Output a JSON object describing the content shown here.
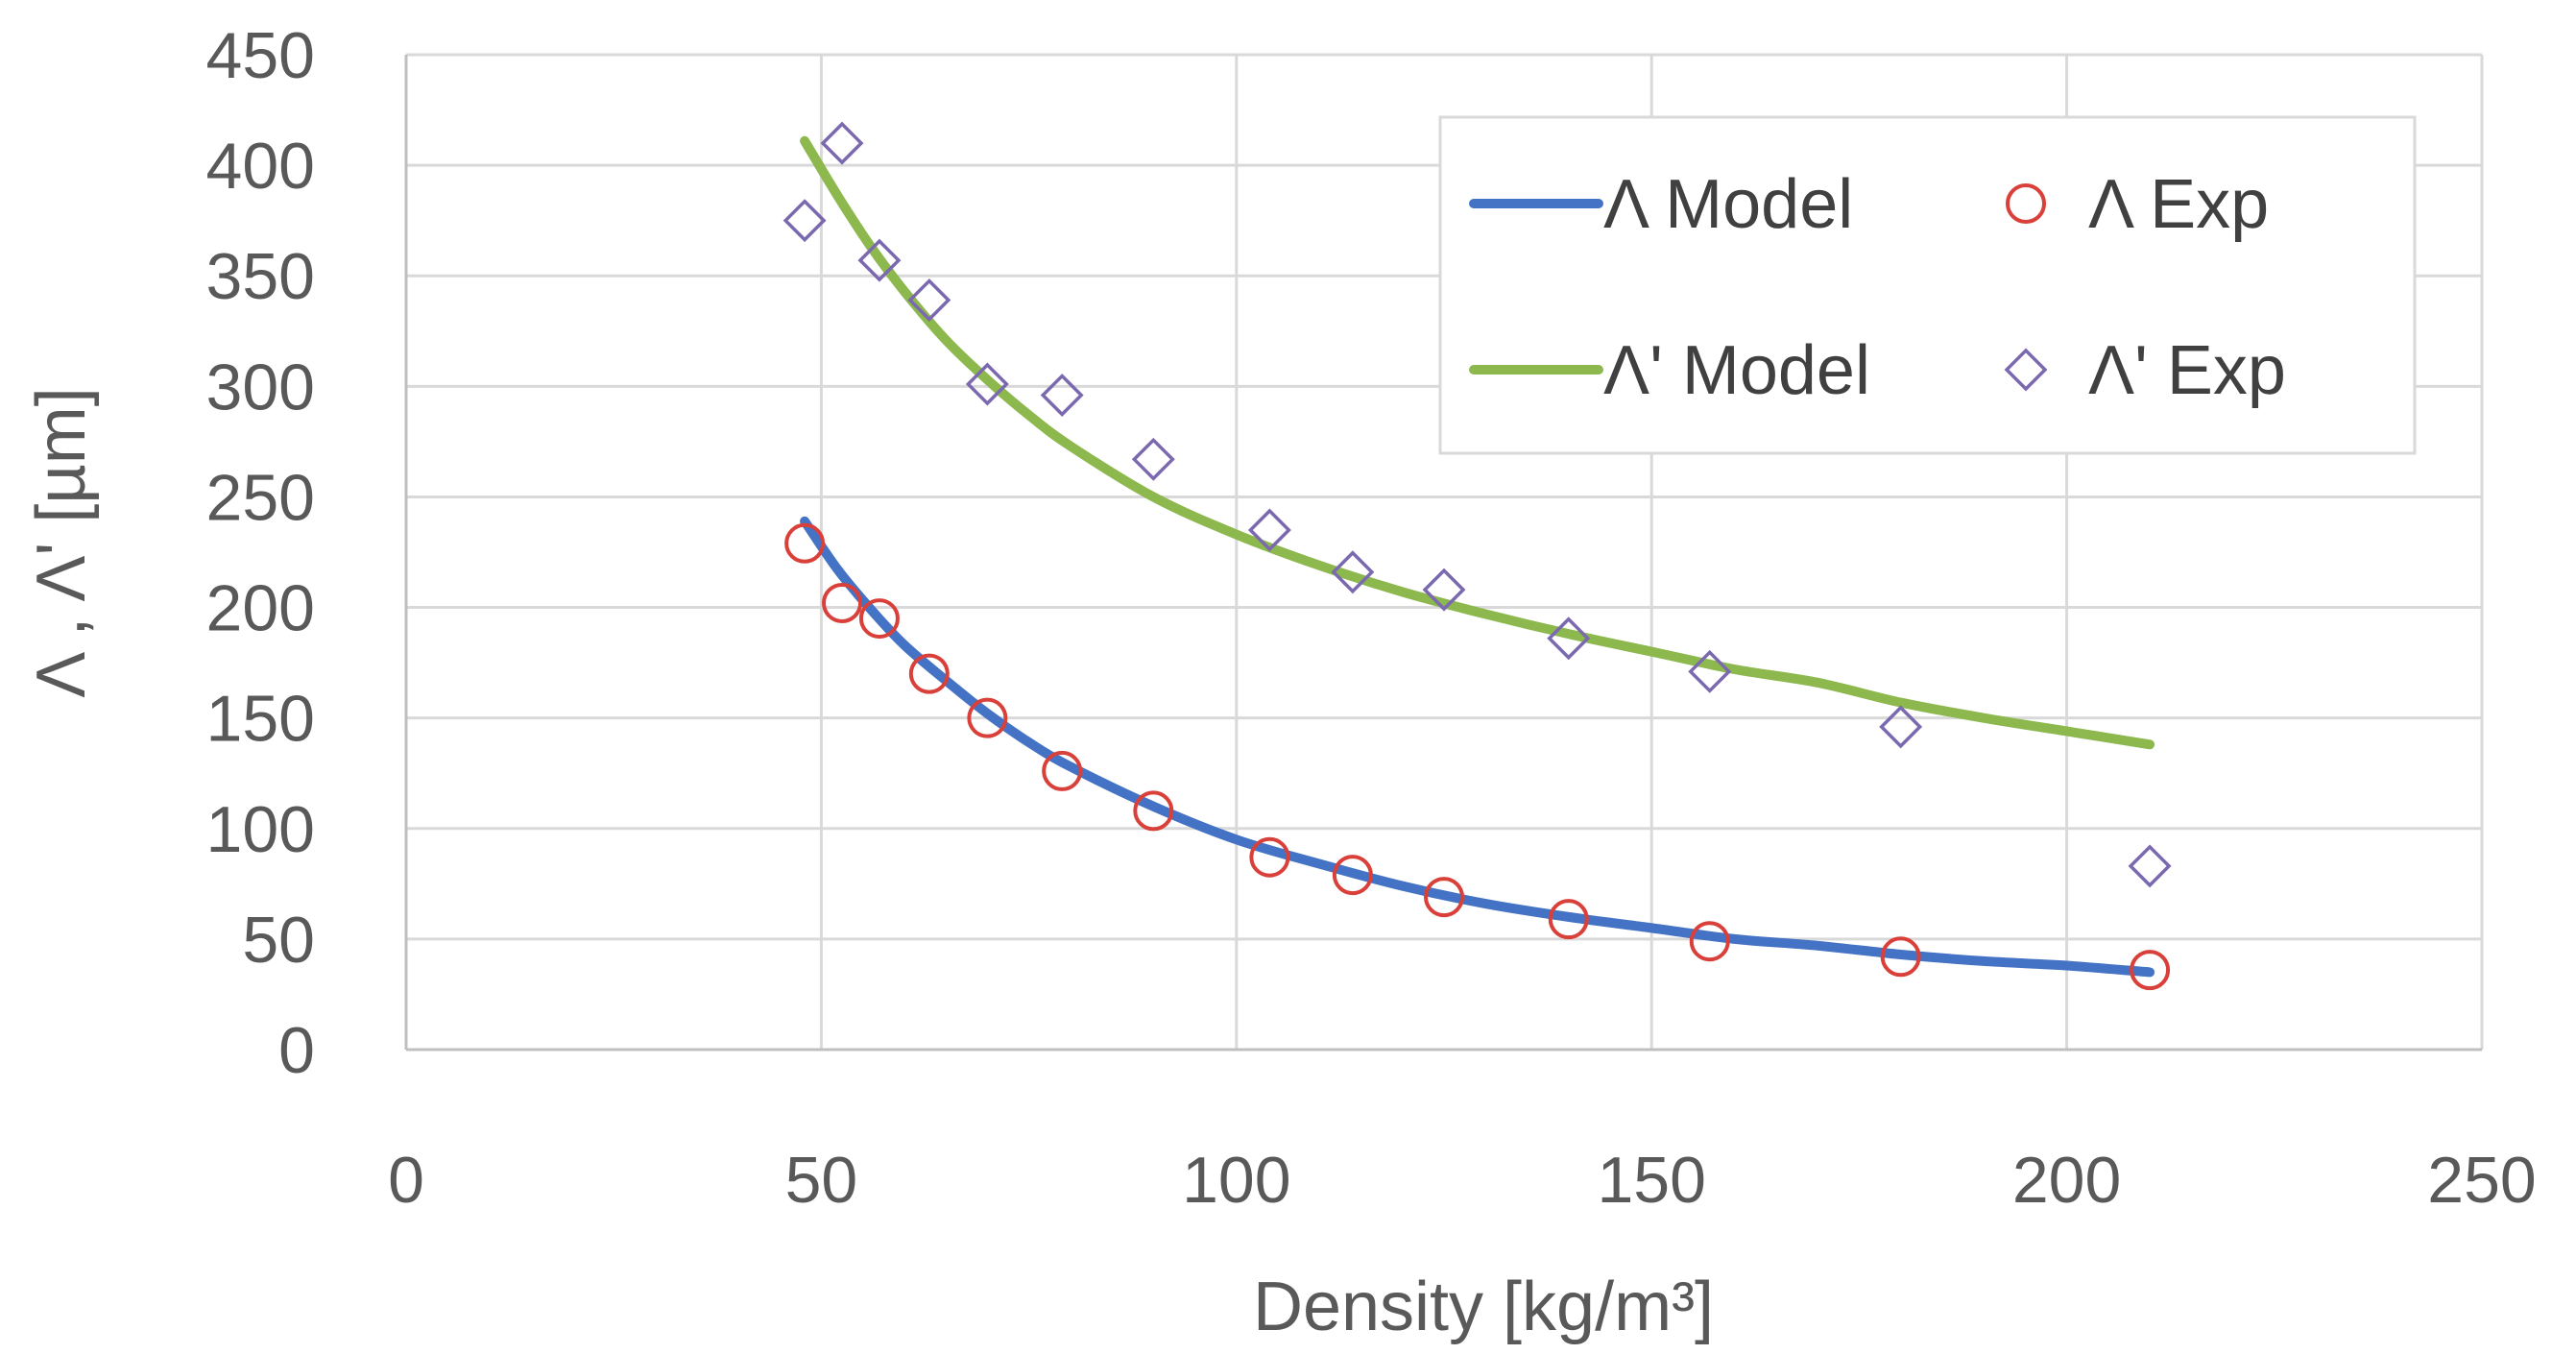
{
  "chart_data": {
    "type": "line+scatter",
    "title": "",
    "xlabel": "Density [kg/m³]",
    "ylabel": "Λ , Λ' [µm]",
    "xlim": [
      0,
      250
    ],
    "ylim": [
      0,
      450
    ],
    "xticks": [
      0,
      50,
      100,
      150,
      200,
      250
    ],
    "yticks": [
      0,
      50,
      100,
      150,
      200,
      250,
      300,
      350,
      400,
      450
    ],
    "grid": true,
    "legend_position": "top-right",
    "colors": {
      "lambda_model": "#4472C4",
      "lambda_prime_model": "#8CB84E",
      "lambda_exp": "#D9403A",
      "lambda_prime_exp": "#7B69B0",
      "grid": "#D9D9D9",
      "text": "#595959"
    },
    "series": [
      {
        "name": "Λ Model",
        "kind": "line",
        "x": [
          48,
          52,
          56,
          60,
          65,
          70,
          75,
          80,
          90,
          100,
          110,
          120,
          130,
          140,
          150,
          160,
          170,
          180,
          190,
          200,
          210
        ],
        "y": [
          239,
          217,
          199,
          183,
          167,
          152,
          139,
          128,
          110,
          95,
          84,
          74,
          66,
          60,
          55,
          50,
          47,
          43,
          40,
          38,
          35
        ]
      },
      {
        "name": "Λ Exp",
        "kind": "scatter",
        "marker": "circle",
        "x": [
          48,
          52.5,
          57,
          63,
          70,
          79,
          90,
          104,
          114,
          125,
          140,
          157,
          180,
          210
        ],
        "y": [
          229,
          202,
          195,
          170,
          150,
          126,
          108,
          87,
          79,
          69,
          59,
          49,
          42,
          36
        ]
      },
      {
        "name": "Λ' Model",
        "kind": "line",
        "x": [
          48,
          52,
          56,
          60,
          65,
          70,
          75,
          80,
          90,
          100,
          110,
          120,
          130,
          140,
          150,
          160,
          170,
          180,
          190,
          200,
          210
        ],
        "y": [
          411,
          386,
          363,
          343,
          321,
          303,
          287,
          273,
          250,
          233,
          219,
          207,
          197,
          188,
          180,
          172,
          166,
          157,
          150,
          144,
          138
        ]
      },
      {
        "name": "Λ' Exp",
        "kind": "scatter",
        "marker": "diamond",
        "x": [
          48,
          52.5,
          57,
          63,
          70,
          79,
          90,
          104,
          114,
          125,
          140,
          157,
          180,
          210
        ],
        "y": [
          375,
          410,
          357,
          339,
          301,
          296,
          267,
          235,
          216,
          208,
          186,
          171,
          146,
          83
        ]
      }
    ],
    "legend": [
      {
        "label": "Λ Model",
        "series": 0,
        "symbol": "line"
      },
      {
        "label": "Λ Exp",
        "series": 1,
        "symbol": "circle"
      },
      {
        "label": "Λ' Model",
        "series": 2,
        "symbol": "line"
      },
      {
        "label": "Λ' Exp",
        "series": 3,
        "symbol": "diamond"
      }
    ]
  }
}
